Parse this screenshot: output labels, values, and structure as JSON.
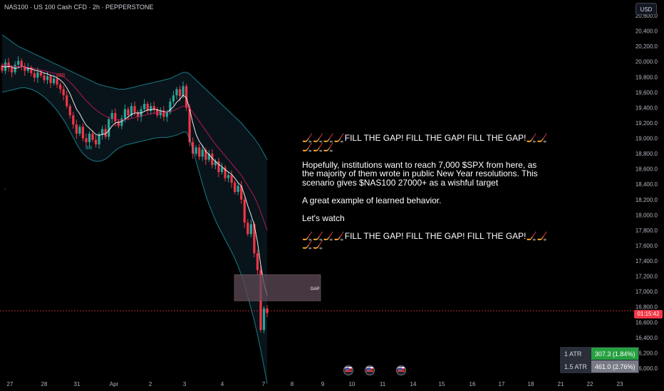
{
  "header": {
    "symbol_title": "NAS100 · US 100 Cash CFD · 2h · PEPPERSTONE",
    "currency": "USD"
  },
  "annotation": {
    "line1": "🏒🏒🏒🏒FILL THE GAP! FILL THE GAP! FILL THE GAP!🏒🏒🏒🏒🏒",
    "line2": "Hopefully, institutions want to reach 7,000 $SPX from here, as the majority of them wrote in public New Year resolutions. This scenario gives $NAS100 27000+ as a wishful target",
    "line3": "A great example of learned behavior.",
    "line4": "Let's watch",
    "line5": "🏒🏒🏒🏒FILL THE GAP! FILL THE GAP! FILL THE GAP!🏒🏒🏒🏒"
  },
  "price_label": {
    "text": "01:15:42",
    "value": 16750,
    "color": "#f23645"
  },
  "atr_table": [
    {
      "label": "1 ATR",
      "value": "307.3 (1.84%)",
      "color": "#26a040"
    },
    {
      "label": "1.5 ATR",
      "value": "461.0 (2.76%)",
      "color": "#787b86"
    }
  ],
  "events": {
    "flag_icon": "us-flag-icon",
    "count": 3
  },
  "chart_data": {
    "type": "candlestick",
    "title": "",
    "y_axis_ticks": [
      "16,000.0",
      "16,200.0",
      "16,400.0",
      "16,600.0",
      "16,800.0",
      "17,000.0",
      "17,200.0",
      "17,400.0",
      "17,600.0",
      "17,800.0",
      "18,000.0",
      "18,200.0",
      "18,400.0",
      "18,600.0",
      "18,800.0",
      "19,000.0",
      "19,200.0",
      "19,400.0",
      "19,600.0",
      "19,800.0",
      "20,000.0",
      "20,200.0",
      "20,400.0",
      "20,600.0"
    ],
    "ylim": [
      15980,
      20680
    ],
    "x_axis_ticks": [
      "27",
      "28",
      "31",
      "Apr",
      "2",
      "3",
      "4",
      "7",
      "8",
      "9",
      "10",
      "11",
      "14",
      "15",
      "16",
      "17",
      "18",
      "21",
      "22",
      "23"
    ],
    "bb_labels": [
      "BB",
      "BB"
    ],
    "gap_zone": {
      "label": "GAP",
      "y_low": 16880,
      "y_high": 17220
    },
    "current_price": 16750,
    "up_color": "#26a69a",
    "down_color": "#f23645",
    "candles": [
      {
        "o": 19950,
        "c": 19880
      },
      {
        "o": 19880,
        "c": 19990
      },
      {
        "o": 19990,
        "c": 19920
      },
      {
        "o": 19920,
        "c": 19860
      },
      {
        "o": 19860,
        "c": 19960
      },
      {
        "o": 19960,
        "c": 20010
      },
      {
        "o": 20010,
        "c": 19940
      },
      {
        "o": 19940,
        "c": 19880
      },
      {
        "o": 19880,
        "c": 19920
      },
      {
        "o": 19920,
        "c": 19850
      },
      {
        "o": 19850,
        "c": 19790
      },
      {
        "o": 19790,
        "c": 19860
      },
      {
        "o": 19860,
        "c": 19820
      },
      {
        "o": 19820,
        "c": 19760
      },
      {
        "o": 19760,
        "c": 19810
      },
      {
        "o": 19810,
        "c": 19720
      },
      {
        "o": 19720,
        "c": 19780
      },
      {
        "o": 19780,
        "c": 19700
      },
      {
        "o": 19700,
        "c": 19640
      },
      {
        "o": 19640,
        "c": 19560
      },
      {
        "o": 19560,
        "c": 19420
      },
      {
        "o": 19420,
        "c": 19300
      },
      {
        "o": 19300,
        "c": 19180
      },
      {
        "o": 19180,
        "c": 19060
      },
      {
        "o": 19060,
        "c": 19150
      },
      {
        "o": 19150,
        "c": 19000
      },
      {
        "o": 19000,
        "c": 18950
      },
      {
        "o": 18950,
        "c": 19060
      },
      {
        "o": 19060,
        "c": 18980
      },
      {
        "o": 18980,
        "c": 18920
      },
      {
        "o": 18920,
        "c": 19050
      },
      {
        "o": 19050,
        "c": 19120
      },
      {
        "o": 19120,
        "c": 19020
      },
      {
        "o": 19020,
        "c": 19250
      },
      {
        "o": 19250,
        "c": 19330
      },
      {
        "o": 19330,
        "c": 19220
      },
      {
        "o": 19220,
        "c": 19160
      },
      {
        "o": 19160,
        "c": 19260
      },
      {
        "o": 19260,
        "c": 19380
      },
      {
        "o": 19380,
        "c": 19300
      },
      {
        "o": 19300,
        "c": 19420
      },
      {
        "o": 19420,
        "c": 19340
      },
      {
        "o": 19340,
        "c": 19280
      },
      {
        "o": 19280,
        "c": 19380
      },
      {
        "o": 19380,
        "c": 19450
      },
      {
        "o": 19450,
        "c": 19360
      },
      {
        "o": 19360,
        "c": 19420
      },
      {
        "o": 19420,
        "c": 19380
      },
      {
        "o": 19380,
        "c": 19300
      },
      {
        "o": 19300,
        "c": 19360
      },
      {
        "o": 19360,
        "c": 19280
      },
      {
        "o": 19280,
        "c": 19340
      },
      {
        "o": 19340,
        "c": 19480
      },
      {
        "o": 19480,
        "c": 19560
      },
      {
        "o": 19560,
        "c": 19640
      },
      {
        "o": 19640,
        "c": 19550
      },
      {
        "o": 19550,
        "c": 19680
      },
      {
        "o": 19680,
        "c": 19400
      },
      {
        "o": 19400,
        "c": 18950
      },
      {
        "o": 18950,
        "c": 18800
      },
      {
        "o": 18800,
        "c": 18880
      },
      {
        "o": 18880,
        "c": 18760
      },
      {
        "o": 18760,
        "c": 18850
      },
      {
        "o": 18850,
        "c": 18720
      },
      {
        "o": 18720,
        "c": 18800
      },
      {
        "o": 18800,
        "c": 18650
      },
      {
        "o": 18650,
        "c": 18700
      },
      {
        "o": 18700,
        "c": 18560
      },
      {
        "o": 18560,
        "c": 18620
      },
      {
        "o": 18620,
        "c": 18480
      },
      {
        "o": 18480,
        "c": 18520
      },
      {
        "o": 18520,
        "c": 18420
      },
      {
        "o": 18420,
        "c": 18300
      },
      {
        "o": 18300,
        "c": 18380
      },
      {
        "o": 18380,
        "c": 18200
      },
      {
        "o": 18200,
        "c": 17900
      },
      {
        "o": 17900,
        "c": 17750
      },
      {
        "o": 17750,
        "c": 17880
      },
      {
        "o": 17880,
        "c": 17500
      },
      {
        "o": 17500,
        "c": 17280
      },
      {
        "o": 17280,
        "c": 16500
      },
      {
        "o": 16500,
        "c": 16780
      },
      {
        "o": 16780,
        "c": 16720
      }
    ],
    "series": [
      {
        "name": "",
        "color": "#ffffff",
        "values": [
          19940,
          19930,
          19940,
          19930,
          19910,
          19920,
          19940,
          19930,
          19910,
          19910,
          19890,
          19880,
          19870,
          19850,
          19840,
          19820,
          19810,
          19790,
          19760,
          19720,
          19660,
          19580,
          19480,
          19380,
          19320,
          19240,
          19170,
          19130,
          19090,
          19050,
          19040,
          19050,
          19060,
          19100,
          19160,
          19200,
          19210,
          19220,
          19250,
          19280,
          19310,
          19330,
          19330,
          19330,
          19350,
          19370,
          19370,
          19380,
          19370,
          19360,
          19350,
          19340,
          19370,
          19410,
          19470,
          19510,
          19560,
          19530,
          19380,
          19200,
          19050,
          18960,
          18900,
          18830,
          18790,
          18740,
          18700,
          18660,
          18630,
          18590,
          18560,
          18530,
          18480,
          18420,
          18380,
          18260,
          18120,
          18000,
          17870,
          17650,
          17350,
          17100,
          16950
        ]
      },
      {
        "name": "",
        "color": "#c2185b",
        "values": [
          19960,
          19955,
          19950,
          19945,
          19940,
          19935,
          19935,
          19930,
          19925,
          19920,
          19910,
          19900,
          19890,
          19880,
          19870,
          19860,
          19850,
          19840,
          19820,
          19800,
          19770,
          19730,
          19690,
          19640,
          19590,
          19540,
          19490,
          19450,
          19410,
          19370,
          19340,
          19310,
          19290,
          19270,
          19260,
          19250,
          19240,
          19240,
          19240,
          19250,
          19260,
          19270,
          19280,
          19290,
          19300,
          19310,
          19320,
          19330,
          19335,
          19340,
          19340,
          19340,
          19350,
          19360,
          19380,
          19400,
          19420,
          19420,
          19390,
          19340,
          19280,
          19220,
          19160,
          19100,
          19040,
          18980,
          18920,
          18870,
          18820,
          18770,
          18720,
          18670,
          18620,
          18570,
          18520,
          18450,
          18380,
          18310,
          18240,
          18150,
          18040,
          17920,
          17800
        ]
      },
      {
        "name": "",
        "color": "#26c6da",
        "opacity": 0.6,
        "values": [
          20350,
          20320,
          20290,
          20260,
          20230,
          20200,
          20180,
          20160,
          20140,
          20120,
          20100,
          20080,
          20060,
          20040,
          20020,
          20000,
          19980,
          19960,
          19940,
          19920,
          19900,
          19880,
          19860,
          19840,
          19820,
          19800,
          19780,
          19760,
          19740,
          19720,
          19700,
          19690,
          19680,
          19670,
          19660,
          19650,
          19640,
          19640,
          19640,
          19650,
          19660,
          19670,
          19680,
          19690,
          19700,
          19710,
          19720,
          19730,
          19740,
          19750,
          19760,
          19770,
          19780,
          19800,
          19820,
          19840,
          19860,
          19860,
          19840,
          19800,
          19760,
          19720,
          19680,
          19640,
          19600,
          19560,
          19520,
          19480,
          19440,
          19400,
          19360,
          19320,
          19280,
          19240,
          19200,
          19150,
          19100,
          19050,
          19000,
          18940,
          18880,
          18800,
          18720
        ]
      },
      {
        "name": "",
        "color": "#26c6da",
        "opacity": 0.6,
        "values": [
          19600,
          19610,
          19620,
          19630,
          19640,
          19650,
          19660,
          19660,
          19650,
          19640,
          19620,
          19600,
          19570,
          19540,
          19500,
          19460,
          19410,
          19360,
          19300,
          19240,
          19170,
          19090,
          19010,
          18930,
          18860,
          18800,
          18760,
          18730,
          18710,
          18700,
          18700,
          18710,
          18730,
          18760,
          18800,
          18840,
          18870,
          18890,
          18910,
          18920,
          18930,
          18940,
          18950,
          18960,
          18970,
          18980,
          18990,
          19000,
          19005,
          19010,
          19010,
          19010,
          19020,
          19030,
          19040,
          19060,
          19080,
          19080,
          19000,
          18850,
          18700,
          18550,
          18400,
          18260,
          18140,
          18030,
          17930,
          17840,
          17760,
          17680,
          17600,
          17520,
          17430,
          17330,
          17220,
          17080,
          16930,
          16780,
          16620,
          16440,
          16240,
          16020,
          15800
        ]
      }
    ]
  }
}
